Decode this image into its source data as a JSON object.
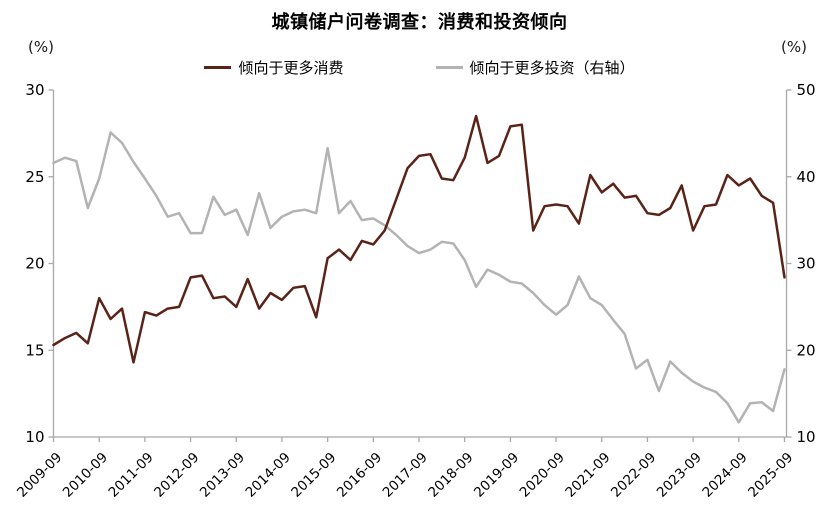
{
  "title": "城镇储户问卷调查：消费和投资倾向",
  "left_axis_unit": "(%)",
  "right_axis_unit": "(%)",
  "legend": [
    {
      "label": "倾向于更多消费",
      "color": "#5a2318"
    },
    {
      "label": "倾向于更多投资（右轴）",
      "color": "#b3b3b3"
    }
  ],
  "chart_data": {
    "type": "line",
    "title": "城镇储户问卷调查：消费和投资倾向",
    "xlabel": "",
    "ylabel_left": "(%)",
    "ylabel_right": "(%)",
    "grid": false,
    "legend_position": "top",
    "left_ylim": [
      10,
      30
    ],
    "right_ylim": [
      10,
      50
    ],
    "left_ticks": [
      10,
      15,
      20,
      25,
      30
    ],
    "right_ticks": [
      10,
      20,
      30,
      40,
      50
    ],
    "x_tick_labels": [
      "2009-09",
      "2010-09",
      "2011-09",
      "2012-09",
      "2013-09",
      "2014-09",
      "2015-09",
      "2016-09",
      "2017-09",
      "2018-09",
      "2019-09",
      "2020-09",
      "2021-09",
      "2022-09",
      "2023-09",
      "2024-09",
      "2025-09"
    ],
    "categories": [
      "2009-09",
      "2009-12",
      "2010-03",
      "2010-06",
      "2010-09",
      "2010-12",
      "2011-03",
      "2011-06",
      "2011-09",
      "2011-12",
      "2012-03",
      "2012-06",
      "2012-09",
      "2012-12",
      "2013-03",
      "2013-06",
      "2013-09",
      "2013-12",
      "2014-03",
      "2014-06",
      "2014-09",
      "2014-12",
      "2015-03",
      "2015-06",
      "2015-09",
      "2015-12",
      "2016-03",
      "2016-06",
      "2016-09",
      "2016-12",
      "2017-03",
      "2017-06",
      "2017-09",
      "2017-12",
      "2018-03",
      "2018-06",
      "2018-09",
      "2018-12",
      "2019-03",
      "2019-06",
      "2019-09",
      "2019-12",
      "2020-03",
      "2020-06",
      "2020-09",
      "2020-12",
      "2021-03",
      "2021-06",
      "2021-09",
      "2021-12",
      "2022-03",
      "2022-06",
      "2022-09",
      "2022-12",
      "2023-03",
      "2023-06",
      "2023-09",
      "2023-12",
      "2024-03",
      "2024-06",
      "2024-09",
      "2024-12",
      "2025-03",
      "2025-06",
      "2025-09"
    ],
    "series": [
      {
        "name": "倾向于更多消费",
        "axis": "left",
        "color": "#5a2318",
        "values": [
          15.3,
          15.7,
          16.0,
          15.4,
          18.0,
          16.8,
          17.4,
          14.3,
          17.2,
          17.0,
          17.4,
          17.5,
          19.2,
          19.3,
          18.0,
          18.1,
          17.5,
          19.1,
          17.4,
          18.3,
          17.9,
          18.6,
          18.7,
          16.9,
          20.3,
          20.8,
          20.2,
          21.3,
          21.1,
          21.9,
          23.7,
          25.5,
          26.2,
          26.3,
          24.9,
          24.8,
          26.1,
          28.5,
          25.8,
          26.2,
          27.9,
          28.0,
          21.9,
          23.3,
          23.4,
          23.3,
          22.3,
          25.1,
          24.1,
          24.6,
          23.8,
          23.9,
          22.9,
          22.8,
          23.2,
          24.5,
          21.9,
          23.3,
          23.4,
          25.1,
          24.5,
          24.9,
          23.9,
          23.5,
          19.2
        ]
      },
      {
        "name": "倾向于更多投资（右轴）",
        "axis": "right",
        "color": "#b3b3b3",
        "values": [
          41.6,
          42.2,
          41.8,
          36.4,
          39.8,
          45.1,
          43.9,
          41.7,
          39.8,
          37.8,
          35.4,
          35.8,
          33.5,
          33.5,
          37.7,
          35.6,
          36.2,
          33.3,
          38.1,
          34.1,
          35.4,
          36.0,
          36.2,
          35.8,
          43.3,
          35.8,
          37.2,
          35.0,
          35.2,
          34.4,
          33.3,
          32.0,
          31.2,
          31.6,
          32.5,
          32.3,
          30.4,
          27.3,
          29.3,
          28.7,
          27.9,
          27.7,
          26.6,
          25.2,
          24.1,
          25.2,
          28.5,
          26.0,
          25.2,
          23.5,
          21.9,
          17.9,
          18.9,
          15.3,
          18.7,
          17.4,
          16.4,
          15.7,
          15.2,
          13.9,
          11.7,
          13.9,
          14.0,
          13.0,
          17.8
        ]
      }
    ]
  }
}
